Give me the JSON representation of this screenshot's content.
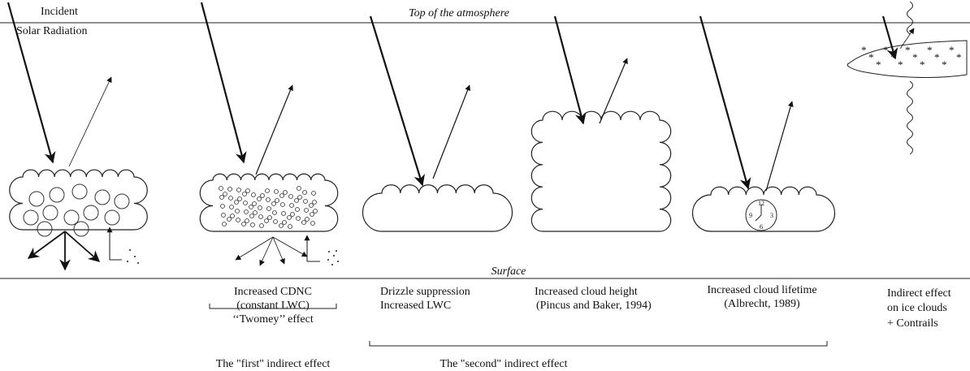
{
  "incident": [
    "Incident",
    "Solar Radiation"
  ],
  "top_label": "Top of the atmosphere",
  "surface_label": "Surface",
  "clock": [
    "12",
    "3",
    "6",
    "9"
  ],
  "panels": [
    {
      "caption": [
        "Increased CDNC",
        "(constant LWC)",
        "‘‘Twomey’’ effect"
      ]
    },
    {
      "caption": [
        "Drizzle suppression",
        "Increased LWC"
      ]
    },
    {
      "caption": [
        "Increased cloud height",
        "(Pincus and Baker, 1994)"
      ]
    },
    {
      "caption": [
        "Increased cloud lifetime",
        "(Albrecht, 1989)"
      ]
    },
    {
      "caption": [
        "Indirect effect",
        "on ice clouds",
        "+ Contrails"
      ]
    }
  ],
  "brackets": [
    "The \"first\" indirect effect",
    "The \"second\" indirect effect"
  ]
}
